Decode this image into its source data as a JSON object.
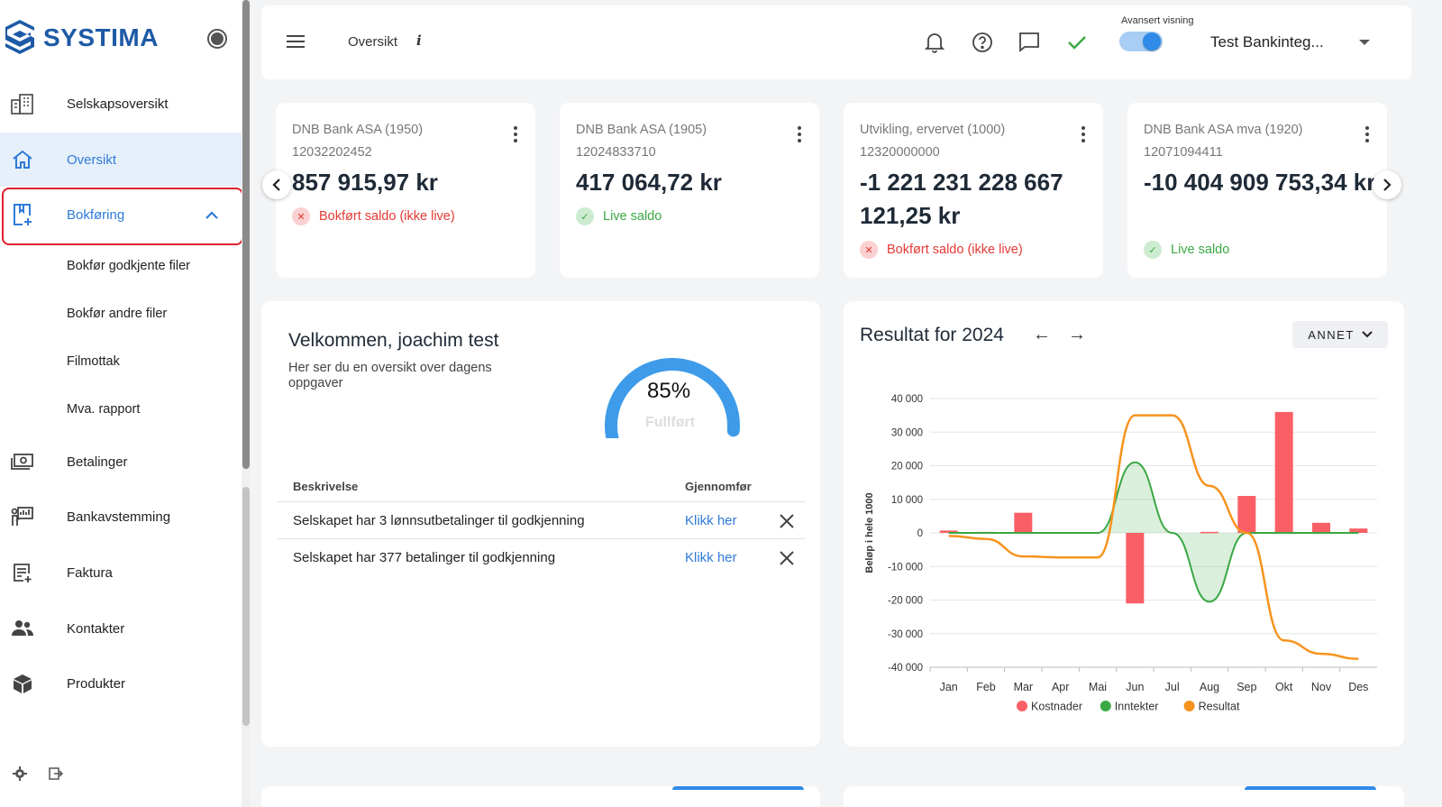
{
  "brand": {
    "name": "SYSTIMA"
  },
  "sidebar": {
    "items": [
      {
        "label": "Selskapsoversikt",
        "icon": "company-icon"
      },
      {
        "label": "Oversikt",
        "icon": "home-icon"
      },
      {
        "label": "Bokføring",
        "icon": "bookkeeping-icon"
      },
      {
        "label": "Betalinger",
        "icon": "payments-icon"
      },
      {
        "label": "Bankavstemming",
        "icon": "bank-reconciliation-icon"
      },
      {
        "label": "Faktura",
        "icon": "invoice-icon"
      },
      {
        "label": "Kontakter",
        "icon": "contacts-icon"
      },
      {
        "label": "Produkter",
        "icon": "products-icon"
      }
    ],
    "subitems": [
      "Bokfør godkjente filer",
      "Bokfør andre filer",
      "Filmottak",
      "Mva. rapport"
    ]
  },
  "topbar": {
    "breadcrumb": "Oversikt",
    "info": "i",
    "advanced_label": "Avansert visning",
    "company": "Test Bankinteg..."
  },
  "accounts": [
    {
      "name": "DNB Bank ASA (1950)",
      "number": "12032202452",
      "balance": "857 915,97 kr",
      "status": "Bokført saldo (ikke live)",
      "live": false
    },
    {
      "name": "DNB Bank ASA (1905)",
      "number": "12024833710",
      "balance": "417 064,72 kr",
      "status": "Live saldo",
      "live": true
    },
    {
      "name": "Utvikling, ervervet (1000)",
      "number": "12320000000",
      "balance": "-1 221 231 228 667 121,25 kr",
      "status": "Bokført saldo (ikke live)",
      "live": false
    },
    {
      "name": "DNB Bank ASA mva (1920)",
      "number": "12071094411",
      "balance": "-10 404 909 753,34 kr",
      "status": "Live saldo",
      "live": true
    }
  ],
  "welcome": {
    "title": "Velkommen, joachim test",
    "subtitle": "Her ser du en oversikt over dagens oppgaver",
    "progress_value": "85%",
    "progress_fraction": 0.85,
    "progress_label": "Fullført",
    "columns": [
      "Beskrivelse",
      "Gjennomfør"
    ],
    "tasks": [
      {
        "description": "Selskapet har 3 lønnsutbetalinger til godkjenning",
        "action": "Klikk her"
      },
      {
        "description": "Selskapet har 377 betalinger til godkjenning",
        "action": "Klikk her"
      }
    ]
  },
  "chart_panel": {
    "title": "Resultat for 2024",
    "filter": "ANNET"
  },
  "colors": {
    "accent": "#2f7bd8",
    "kostnader": "#fb5f66",
    "inntekter": "#3aa844",
    "resultat": "#f7931e"
  },
  "chart_data": {
    "type": "bar",
    "categories": [
      "Jan",
      "Feb",
      "Mar",
      "Apr",
      "Mai",
      "Jun",
      "Jul",
      "Aug",
      "Sep",
      "Okt",
      "Nov",
      "Des"
    ],
    "ylabel": "Beløp i hele 1000",
    "ylim": [
      -40000,
      40000
    ],
    "yticks": [
      "40 000",
      "30 000",
      "20 000",
      "10 000",
      "0",
      "-10 000",
      "-20 000",
      "-30 000",
      "-40 000"
    ],
    "ytick_values": [
      40000,
      30000,
      20000,
      10000,
      0,
      -10000,
      -20000,
      -30000,
      -40000
    ],
    "grid": true,
    "legend": "bottom",
    "series": [
      {
        "name": "Kostnader",
        "type": "bar",
        "values": [
          700,
          300,
          6000,
          0,
          0,
          -21000,
          0,
          300,
          11000,
          36000,
          3000,
          1300
        ]
      },
      {
        "name": "Inntekter",
        "type": "area",
        "values": [
          0,
          0,
          0,
          0,
          0,
          21000,
          0,
          -20500,
          0,
          0,
          0,
          0
        ]
      },
      {
        "name": "Resultat",
        "type": "line",
        "values": [
          -900,
          -1800,
          -7000,
          -7300,
          -7300,
          35000,
          35000,
          14000,
          0,
          -32000,
          -36000,
          -37500
        ]
      }
    ]
  }
}
